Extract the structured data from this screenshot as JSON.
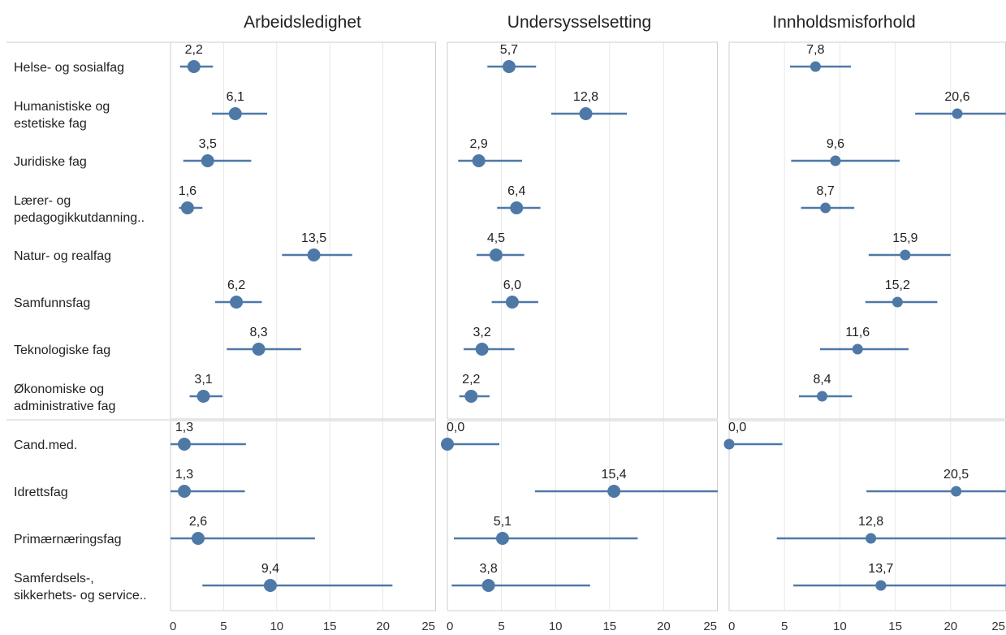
{
  "chart_data": {
    "type": "scatter",
    "subtype": "dot-plot-with-intervals",
    "color": "#4e79a7",
    "panels": [
      {
        "title": "Arbeidsledighet",
        "xlim": [
          0,
          25
        ],
        "ticks": [
          0,
          5,
          10,
          15,
          20,
          25
        ]
      },
      {
        "title": "Undersysselsetting",
        "xlim": [
          0,
          25
        ],
        "ticks": [
          0,
          5,
          10,
          15,
          20,
          25
        ]
      },
      {
        "title": "Innholdsmisforhold",
        "xlim": [
          0,
          25
        ],
        "ticks": [
          0,
          5,
          10,
          15,
          20,
          25
        ]
      }
    ],
    "groups": [
      {
        "rows": [
          {
            "label": [
              "Helse- og sosialfag"
            ],
            "values": [
              {
                "v": 2.2,
                "text": "2,2",
                "lo": 0.9,
                "hi": 4.0
              },
              {
                "v": 5.7,
                "text": "5,7",
                "lo": 3.7,
                "hi": 8.2
              },
              {
                "v": 7.8,
                "text": "7,8",
                "lo": 5.5,
                "hi": 11.0
              }
            ]
          },
          {
            "label": [
              "Humanistiske og",
              "estetiske fag"
            ],
            "values": [
              {
                "v": 6.1,
                "text": "6,1",
                "lo": 3.9,
                "hi": 9.1
              },
              {
                "v": 12.8,
                "text": "12,8",
                "lo": 9.6,
                "hi": 16.6
              },
              {
                "v": 20.6,
                "text": "20,6",
                "lo": 16.8,
                "hi": 25.0
              }
            ]
          },
          {
            "label": [
              "Juridiske fag"
            ],
            "values": [
              {
                "v": 3.5,
                "text": "3,5",
                "lo": 1.2,
                "hi": 7.6
              },
              {
                "v": 2.9,
                "text": "2,9",
                "lo": 1.0,
                "hi": 6.9
              },
              {
                "v": 9.6,
                "text": "9,6",
                "lo": 5.6,
                "hi": 15.4
              }
            ]
          },
          {
            "label": [
              "Lærer- og",
              "pedagogikkutdanning.."
            ],
            "values": [
              {
                "v": 1.6,
                "text": "1,6",
                "lo": 0.8,
                "hi": 3.0
              },
              {
                "v": 6.4,
                "text": "6,4",
                "lo": 4.6,
                "hi": 8.6
              },
              {
                "v": 8.7,
                "text": "8,7",
                "lo": 6.5,
                "hi": 11.3
              }
            ]
          },
          {
            "label": [
              "Natur- og realfag"
            ],
            "values": [
              {
                "v": 13.5,
                "text": "13,5",
                "lo": 10.5,
                "hi": 17.1
              },
              {
                "v": 4.5,
                "text": "4,5",
                "lo": 2.7,
                "hi": 7.1
              },
              {
                "v": 15.9,
                "text": "15,9",
                "lo": 12.6,
                "hi": 20.0
              }
            ]
          },
          {
            "label": [
              "Samfunnsfag"
            ],
            "values": [
              {
                "v": 6.2,
                "text": "6,2",
                "lo": 4.2,
                "hi": 8.6
              },
              {
                "v": 6.0,
                "text": "6,0",
                "lo": 4.1,
                "hi": 8.4
              },
              {
                "v": 15.2,
                "text": "15,2",
                "lo": 12.3,
                "hi": 18.8
              }
            ]
          },
          {
            "label": [
              "Teknologiske fag"
            ],
            "values": [
              {
                "v": 8.3,
                "text": "8,3",
                "lo": 5.3,
                "hi": 12.3
              },
              {
                "v": 3.2,
                "text": "3,2",
                "lo": 1.5,
                "hi": 6.2
              },
              {
                "v": 11.6,
                "text": "11,6",
                "lo": 8.2,
                "hi": 16.2
              }
            ]
          },
          {
            "label": [
              "Økonomiske og",
              "administrative fag"
            ],
            "values": [
              {
                "v": 3.1,
                "text": "3,1",
                "lo": 1.8,
                "hi": 4.9
              },
              {
                "v": 2.2,
                "text": "2,2",
                "lo": 1.1,
                "hi": 3.9
              },
              {
                "v": 8.4,
                "text": "8,4",
                "lo": 6.3,
                "hi": 11.1
              }
            ]
          }
        ]
      },
      {
        "rows": [
          {
            "label": [
              "Cand.med."
            ],
            "values": [
              {
                "v": 1.3,
                "text": "1,3",
                "lo": 0.0,
                "hi": 7.1
              },
              {
                "v": 0.0,
                "text": "0,0",
                "lo": 0.0,
                "hi": 4.8
              },
              {
                "v": 0.0,
                "text": "0,0",
                "lo": 0.0,
                "hi": 4.8
              }
            ]
          },
          {
            "label": [
              "Idrettsfag"
            ],
            "values": [
              {
                "v": 1.3,
                "text": "1,3",
                "lo": 0.0,
                "hi": 7.0
              },
              {
                "v": 15.4,
                "text": "15,4",
                "lo": 8.1,
                "hi": 25.0
              },
              {
                "v": 20.5,
                "text": "20,5",
                "lo": 12.4,
                "hi": 25.0
              }
            ]
          },
          {
            "label": [
              "Primærnæringsfag"
            ],
            "values": [
              {
                "v": 2.6,
                "text": "2,6",
                "lo": 0.0,
                "hi": 13.6
              },
              {
                "v": 5.1,
                "text": "5,1",
                "lo": 0.6,
                "hi": 17.6
              },
              {
                "v": 12.8,
                "text": "12,8",
                "lo": 4.3,
                "hi": 25.0
              }
            ]
          },
          {
            "label": [
              "Samferdsels-,",
              "sikkerhets- og service.."
            ],
            "values": [
              {
                "v": 9.4,
                "text": "9,4",
                "lo": 3.0,
                "hi": 20.9
              },
              {
                "v": 3.8,
                "text": "3,8",
                "lo": 0.4,
                "hi": 13.2
              },
              {
                "v": 13.7,
                "text": "13,7",
                "lo": 5.8,
                "hi": 25.0
              }
            ]
          }
        ]
      }
    ]
  }
}
